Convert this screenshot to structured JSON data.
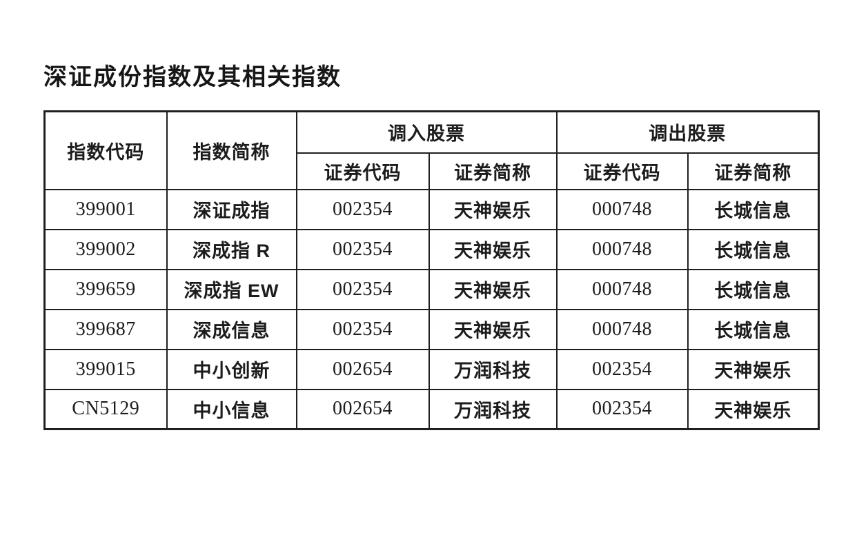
{
  "page": {
    "title": "深证成份指数及其相关指数"
  },
  "table": {
    "headers": {
      "index_code": "指数代码",
      "index_name": "指数简称",
      "in_group": "调入股票",
      "out_group": "调出股票",
      "security_code": "证券代码",
      "security_name": "证券简称"
    },
    "rows": [
      {
        "index_code": "399001",
        "index_name": "深证成指",
        "in_code": "002354",
        "in_name": "天神娱乐",
        "out_code": "000748",
        "out_name": "长城信息"
      },
      {
        "index_code": "399002",
        "index_name": "深成指 R",
        "in_code": "002354",
        "in_name": "天神娱乐",
        "out_code": "000748",
        "out_name": "长城信息"
      },
      {
        "index_code": "399659",
        "index_name": "深成指 EW",
        "in_code": "002354",
        "in_name": "天神娱乐",
        "out_code": "000748",
        "out_name": "长城信息"
      },
      {
        "index_code": "399687",
        "index_name": "深成信息",
        "in_code": "002354",
        "in_name": "天神娱乐",
        "out_code": "000748",
        "out_name": "长城信息"
      },
      {
        "index_code": "399015",
        "index_name": "中小创新",
        "in_code": "002654",
        "in_name": "万润科技",
        "out_code": "002354",
        "out_name": "天神娱乐"
      },
      {
        "index_code": "CN5129",
        "index_name": "中小信息",
        "in_code": "002654",
        "in_name": "万润科技",
        "out_code": "002354",
        "out_name": "天神娱乐"
      }
    ]
  }
}
